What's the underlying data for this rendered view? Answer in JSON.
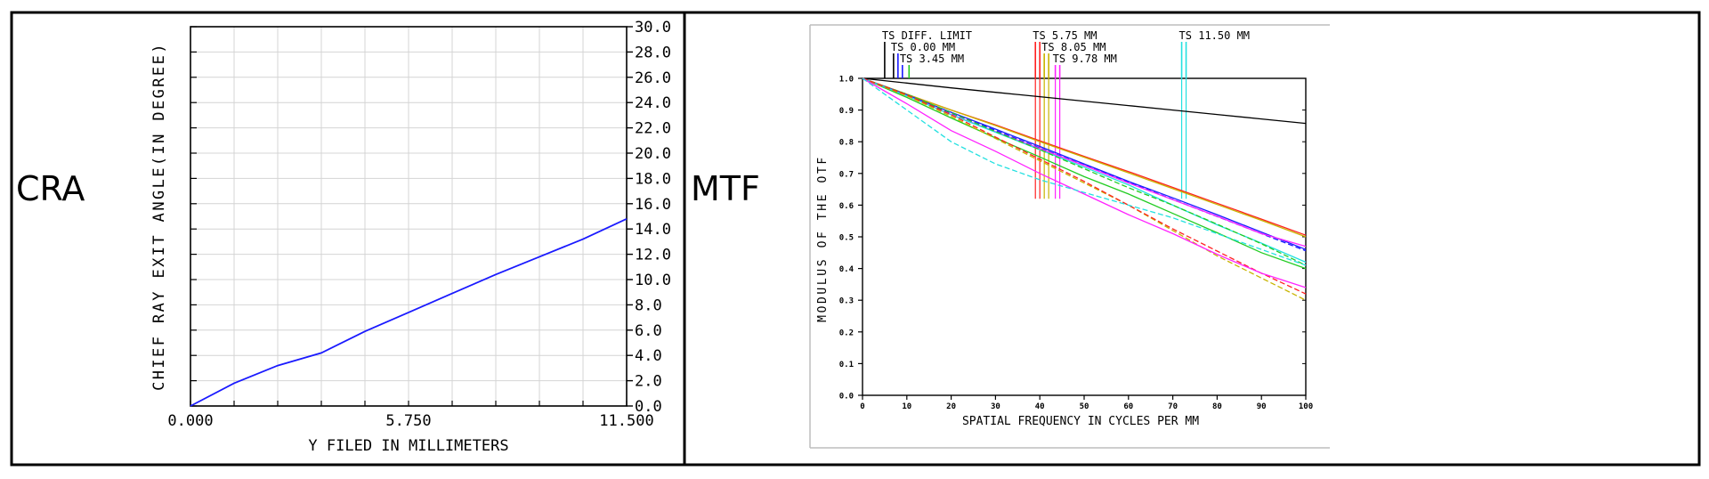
{
  "panels": {
    "cra_label": "CRA",
    "mtf_label": "MTF"
  },
  "chart_data": [
    {
      "id": "cra",
      "type": "line",
      "title": "",
      "xlabel": "Y FILED IN MILLIMETERS",
      "ylabel": "CHIEF RAY EXIT ANGLE(IN DEGREE)",
      "xlim": [
        0,
        11.5
      ],
      "ylim": [
        0,
        30
      ],
      "x_ticks": [
        0,
        5.75,
        11.5
      ],
      "x_tick_labels": [
        "0.000",
        "5.750",
        "11.500"
      ],
      "y_ticks": [
        0,
        2,
        4,
        6,
        8,
        10,
        12,
        14,
        16,
        18,
        20,
        22,
        24,
        26,
        28,
        30
      ],
      "y_tick_labels": [
        "0.0",
        "2.0",
        "4.0",
        "6.0",
        "8.0",
        "10.0",
        "12.0",
        "14.0",
        "16.0",
        "18.0",
        "20.0",
        "22.0",
        "24.0",
        "26.0",
        "28.0",
        "30.0"
      ],
      "y_axis_side": "right",
      "grid": true,
      "series": [
        {
          "color": "#1a1aff",
          "x": [
            0,
            1.15,
            2.3,
            3.45,
            4.6,
            5.75,
            6.9,
            8.05,
            9.2,
            10.35,
            11.5
          ],
          "y": [
            0,
            1.8,
            3.2,
            4.2,
            5.9,
            7.4,
            8.9,
            10.4,
            11.8,
            13.2,
            14.8
          ]
        }
      ]
    },
    {
      "id": "mtf",
      "type": "line",
      "title": "",
      "xlabel": "SPATIAL FREQUENCY IN CYCLES PER MM",
      "ylabel": "MODULUS OF THE OTF",
      "xlim": [
        0,
        100
      ],
      "ylim": [
        0,
        1.0
      ],
      "x_ticks": [
        0,
        10,
        20,
        30,
        40,
        50,
        60,
        70,
        80,
        90,
        100
      ],
      "x_tick_labels": [
        "0",
        "10",
        "20",
        "30",
        "40",
        "50",
        "60",
        "70",
        "80",
        "90",
        "100"
      ],
      "y_ticks": [
        0,
        0.1,
        0.2,
        0.3,
        0.4,
        0.5,
        0.6,
        0.7,
        0.8,
        0.9,
        1.0
      ],
      "y_tick_labels": [
        "0.0",
        "0.1",
        "0.2",
        "0.3",
        "0.4",
        "0.5",
        "0.6",
        "0.7",
        "0.8",
        "0.9",
        "1.0"
      ],
      "grid": false,
      "field_labels": [
        {
          "text": "TS DIFF. LIMIT",
          "marker_x": [
            5
          ],
          "colors": [
            "#000000"
          ]
        },
        {
          "text": "TS 0.00 MM",
          "marker_x": [
            7,
            8
          ],
          "colors": [
            "#000000",
            "#1a1aff"
          ]
        },
        {
          "text": "TS 3.45 MM",
          "marker_x": [
            9,
            10.5
          ],
          "colors": [
            "#1a1aff",
            "#22cc22"
          ]
        },
        {
          "text": "TS 5.75 MM",
          "marker_x": [
            39,
            40
          ],
          "colors": [
            "#ff2020",
            "#ff2020"
          ]
        },
        {
          "text": "TS 8.05 MM",
          "marker_x": [
            41,
            42
          ],
          "colors": [
            "#c8b400",
            "#c8b400"
          ]
        },
        {
          "text": "TS 9.78 MM",
          "marker_x": [
            43.5,
            44.5
          ],
          "colors": [
            "#ff22ff",
            "#ff22ff"
          ]
        },
        {
          "text": "TS 11.50 MM",
          "marker_x": [
            72,
            73
          ],
          "colors": [
            "#22e0e0",
            "#22e0e0"
          ]
        }
      ],
      "series": [
        {
          "color": "#000000",
          "dash": false,
          "x": [
            0,
            10,
            20,
            30,
            40,
            50,
            60,
            70,
            80,
            90,
            100
          ],
          "y": [
            1.0,
            0.985,
            0.97,
            0.956,
            0.942,
            0.928,
            0.914,
            0.9,
            0.886,
            0.872,
            0.858
          ]
        },
        {
          "color": "#ff2020",
          "dash": false,
          "x": [
            0,
            10,
            20,
            30,
            40,
            50,
            60,
            70,
            80,
            90,
            100
          ],
          "y": [
            1.0,
            0.95,
            0.9,
            0.853,
            0.803,
            0.754,
            0.706,
            0.656,
            0.606,
            0.556,
            0.505
          ]
        },
        {
          "color": "#c8b400",
          "dash": false,
          "x": [
            0,
            10,
            20,
            30,
            40,
            50,
            60,
            70,
            80,
            90,
            100
          ],
          "y": [
            1.0,
            0.95,
            0.9,
            0.851,
            0.8,
            0.751,
            0.702,
            0.652,
            0.602,
            0.552,
            0.5
          ]
        },
        {
          "color": "#1a1aff",
          "dash": false,
          "x": [
            0,
            10,
            20,
            30,
            40,
            50,
            60,
            70,
            80,
            90,
            100
          ],
          "y": [
            1.0,
            0.948,
            0.893,
            0.84,
            0.785,
            0.73,
            0.675,
            0.623,
            0.57,
            0.515,
            0.46
          ]
        },
        {
          "color": "#1a1aff",
          "dash": true,
          "x": [
            0,
            10,
            20,
            30,
            40,
            50,
            60,
            70,
            80,
            90,
            100
          ],
          "y": [
            1.0,
            0.946,
            0.89,
            0.836,
            0.78,
            0.726,
            0.672,
            0.618,
            0.564,
            0.51,
            0.456
          ]
        },
        {
          "color": "#ff22ff",
          "dash": false,
          "x": [
            0,
            10,
            20,
            30,
            40,
            50,
            60,
            70,
            80,
            90,
            100
          ],
          "y": [
            1.0,
            0.945,
            0.886,
            0.832,
            0.778,
            0.725,
            0.67,
            0.617,
            0.565,
            0.51,
            0.47
          ]
        },
        {
          "color": "#22cc22",
          "dash": false,
          "x": [
            0,
            10,
            20,
            30,
            40,
            50,
            60,
            70,
            80,
            90,
            100
          ],
          "y": [
            1.0,
            0.94,
            0.875,
            0.812,
            0.752,
            0.69,
            0.635,
            0.574,
            0.513,
            0.45,
            0.4
          ]
        },
        {
          "color": "#22e0e0",
          "dash": false,
          "x": [
            0,
            10,
            20,
            30,
            40,
            50,
            60,
            70,
            80,
            90,
            100
          ],
          "y": [
            1.0,
            0.945,
            0.885,
            0.83,
            0.775,
            0.72,
            0.664,
            0.6,
            0.538,
            0.48,
            0.42
          ]
        },
        {
          "color": "#22cc22",
          "dash": true,
          "x": [
            0,
            10,
            20,
            30,
            40,
            50,
            60,
            70,
            80,
            90,
            100
          ],
          "y": [
            1.0,
            0.95,
            0.892,
            0.832,
            0.775,
            0.715,
            0.655,
            0.6,
            0.54,
            0.478,
            0.41
          ]
        },
        {
          "color": "#c8b400",
          "dash": true,
          "x": [
            0,
            10,
            20,
            30,
            40,
            50,
            60,
            70,
            80,
            90,
            100
          ],
          "y": [
            1.0,
            0.945,
            0.88,
            0.81,
            0.74,
            0.67,
            0.6,
            0.52,
            0.44,
            0.37,
            0.3
          ]
        },
        {
          "color": "#ff2020",
          "dash": true,
          "x": [
            0,
            10,
            20,
            30,
            40,
            50,
            60,
            70,
            80,
            90,
            100
          ],
          "y": [
            1.0,
            0.948,
            0.885,
            0.815,
            0.745,
            0.675,
            0.6,
            0.525,
            0.455,
            0.385,
            0.32
          ]
        },
        {
          "color": "#ff22ff",
          "dash": false,
          "x": [
            0,
            10,
            20,
            30,
            40,
            50,
            60,
            70,
            80,
            90,
            100
          ],
          "y": [
            1.0,
            0.92,
            0.835,
            0.77,
            0.7,
            0.635,
            0.57,
            0.51,
            0.445,
            0.385,
            0.34
          ]
        },
        {
          "color": "#22e0e0",
          "dash": true,
          "x": [
            0,
            10,
            20,
            30,
            40,
            50,
            60,
            70,
            80,
            90,
            100
          ],
          "y": [
            1.0,
            0.9,
            0.8,
            0.73,
            0.68,
            0.64,
            0.6,
            0.56,
            0.51,
            0.46,
            0.41
          ]
        }
      ]
    }
  ]
}
